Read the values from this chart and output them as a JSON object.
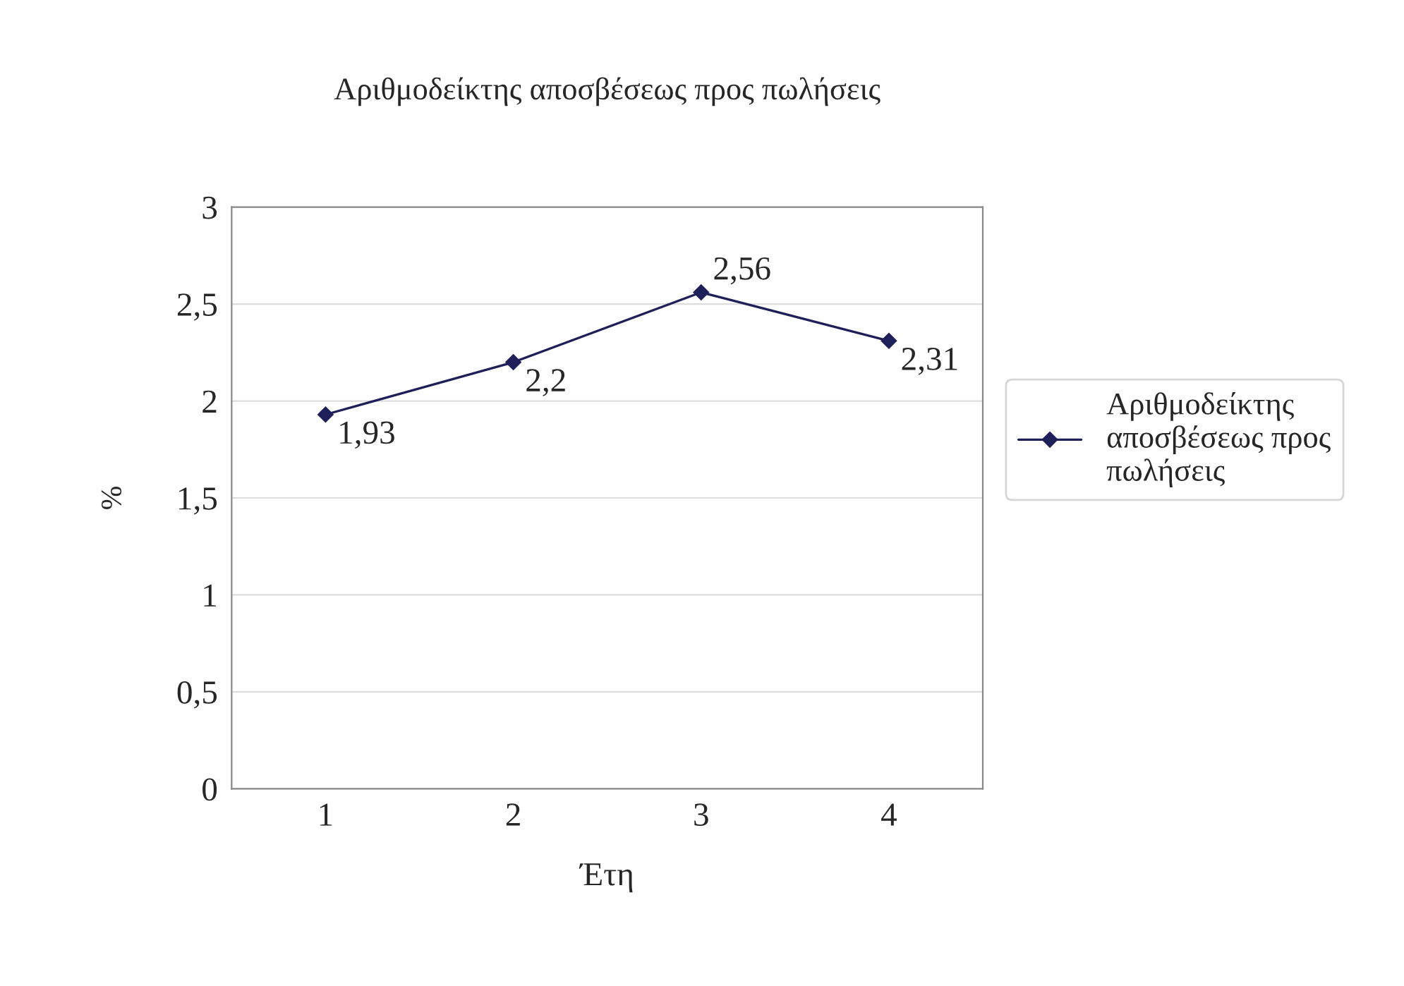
{
  "chart_data": {
    "type": "line",
    "title": "Αριθμοδείκτης αποσβέσεως προς πωλήσεις",
    "xlabel": "Έτη",
    "ylabel": "%",
    "categories": [
      "1",
      "2",
      "3",
      "4"
    ],
    "series": [
      {
        "name": "Αριθμοδείκτης αποσβέσεως προς πωλήσεις",
        "color": "#1f1f5a",
        "values": [
          1.93,
          2.2,
          2.56,
          2.31
        ],
        "value_labels": [
          "1,93",
          "2,2",
          "2,56",
          "2,31"
        ]
      }
    ],
    "ylim": [
      0,
      3
    ],
    "yticks": [
      0,
      {
        "value": 0.5,
        "label": "0,5"
      },
      1,
      {
        "value": 1.5,
        "label": "1,5"
      },
      2,
      {
        "value": 2.5,
        "label": "2,5"
      },
      3
    ],
    "grid": "y",
    "legend": "right",
    "marker": "diamond",
    "line_style": "solid"
  }
}
